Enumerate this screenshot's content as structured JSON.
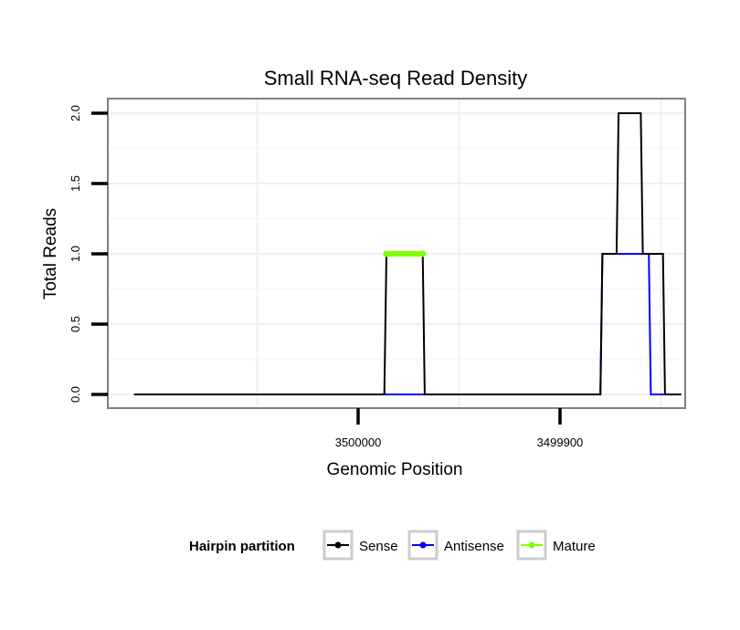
{
  "chart_data": {
    "type": "line",
    "title": "Small RNA-seq Read Density",
    "xlabel": "Genomic Position",
    "ylabel": "Total Reads",
    "x_reversed": true,
    "xlim": [
      3500124,
      3499838
    ],
    "ylim": [
      0,
      2.0
    ],
    "x_ticks": [
      {
        "value": 3500000,
        "label": "3500000"
      },
      {
        "value": 3499900,
        "label": "3499900"
      }
    ],
    "y_ticks": [
      {
        "value": 0.0,
        "label": "0.0"
      },
      {
        "value": 0.5,
        "label": "0.5"
      },
      {
        "value": 1.0,
        "label": "1.0"
      },
      {
        "value": 1.5,
        "label": "1.5"
      },
      {
        "value": 2.0,
        "label": "2.0"
      }
    ],
    "grid": true,
    "legend": {
      "title": "Hairpin partition",
      "position": "bottom"
    },
    "series": [
      {
        "name": "Sense",
        "color": "#000000",
        "x": [
          3500111,
          3499987,
          3499986,
          3499968,
          3499967,
          3499880,
          3499879,
          3499872,
          3499871,
          3499860,
          3499859,
          3499849,
          3499848,
          3499840
        ],
        "y": [
          0,
          0,
          1,
          1,
          0,
          0,
          1,
          1,
          2,
          2,
          1,
          1,
          0,
          0
        ]
      },
      {
        "name": "Antisense",
        "color": "#0000ff",
        "x": [
          3499987,
          3499880,
          3499879,
          3499856,
          3499855,
          3499840
        ],
        "y": [
          0,
          0,
          1,
          1,
          0,
          0
        ]
      },
      {
        "name": "Mature",
        "color": "#7fff00",
        "x": [
          3499986,
          3499968
        ],
        "y": [
          1,
          1
        ]
      }
    ]
  }
}
